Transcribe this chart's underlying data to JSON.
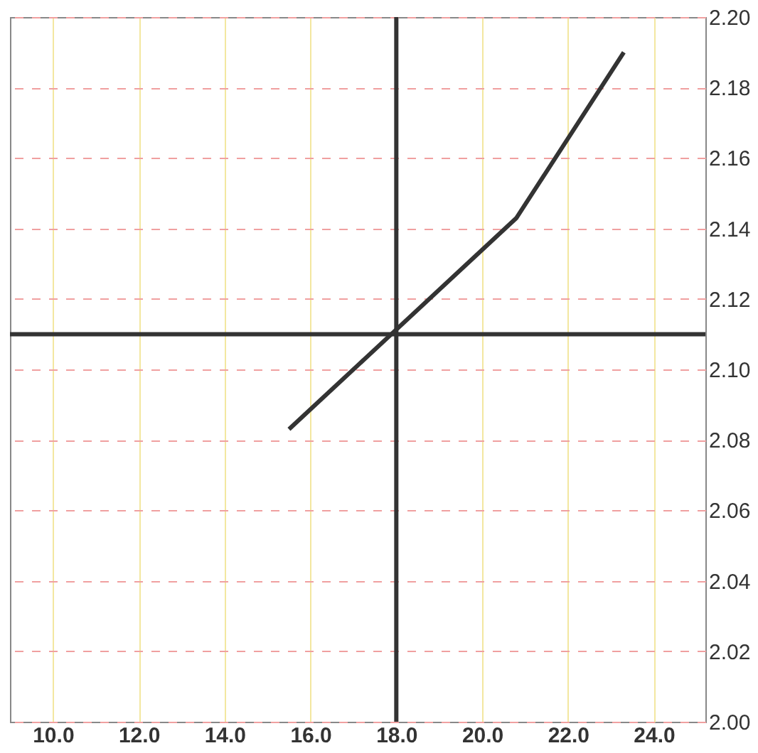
{
  "chart_data": {
    "type": "line",
    "x": [
      15.5,
      20.8,
      23.3
    ],
    "series": [
      {
        "color": "#333333",
        "values": [
          2.083,
          2.143,
          2.19
        ]
      }
    ],
    "xlim": [
      9,
      25.2
    ],
    "ylim": [
      2.0,
      2.2
    ],
    "xticks": [
      {
        "value": 10,
        "label": "10.0"
      },
      {
        "value": 12,
        "label": "12.0"
      },
      {
        "value": 14,
        "label": "14.0"
      },
      {
        "value": 16,
        "label": "16.0"
      },
      {
        "value": 18,
        "label": "18.0"
      },
      {
        "value": 20,
        "label": "20.0"
      },
      {
        "value": 22,
        "label": "22.0"
      },
      {
        "value": 24,
        "label": "24.0"
      }
    ],
    "yticks": [
      {
        "value": 2.0,
        "label": "2.00"
      },
      {
        "value": 2.02,
        "label": "2.02"
      },
      {
        "value": 2.04,
        "label": "2.04"
      },
      {
        "value": 2.06,
        "label": "2.06"
      },
      {
        "value": 2.08,
        "label": "2.08"
      },
      {
        "value": 2.1,
        "label": "2.10"
      },
      {
        "value": 2.12,
        "label": "2.12"
      },
      {
        "value": 2.14,
        "label": "2.14"
      },
      {
        "value": 2.16,
        "label": "2.16"
      },
      {
        "value": 2.18,
        "label": "2.18"
      },
      {
        "value": 2.2,
        "label": "2.20"
      }
    ],
    "ref_lines": [
      {
        "axis": "x",
        "value": 18,
        "color": "#333333"
      },
      {
        "axis": "y",
        "value": 2.11,
        "color": "#333333"
      }
    ],
    "grid": true,
    "marker": "none",
    "line_style": "solid"
  }
}
